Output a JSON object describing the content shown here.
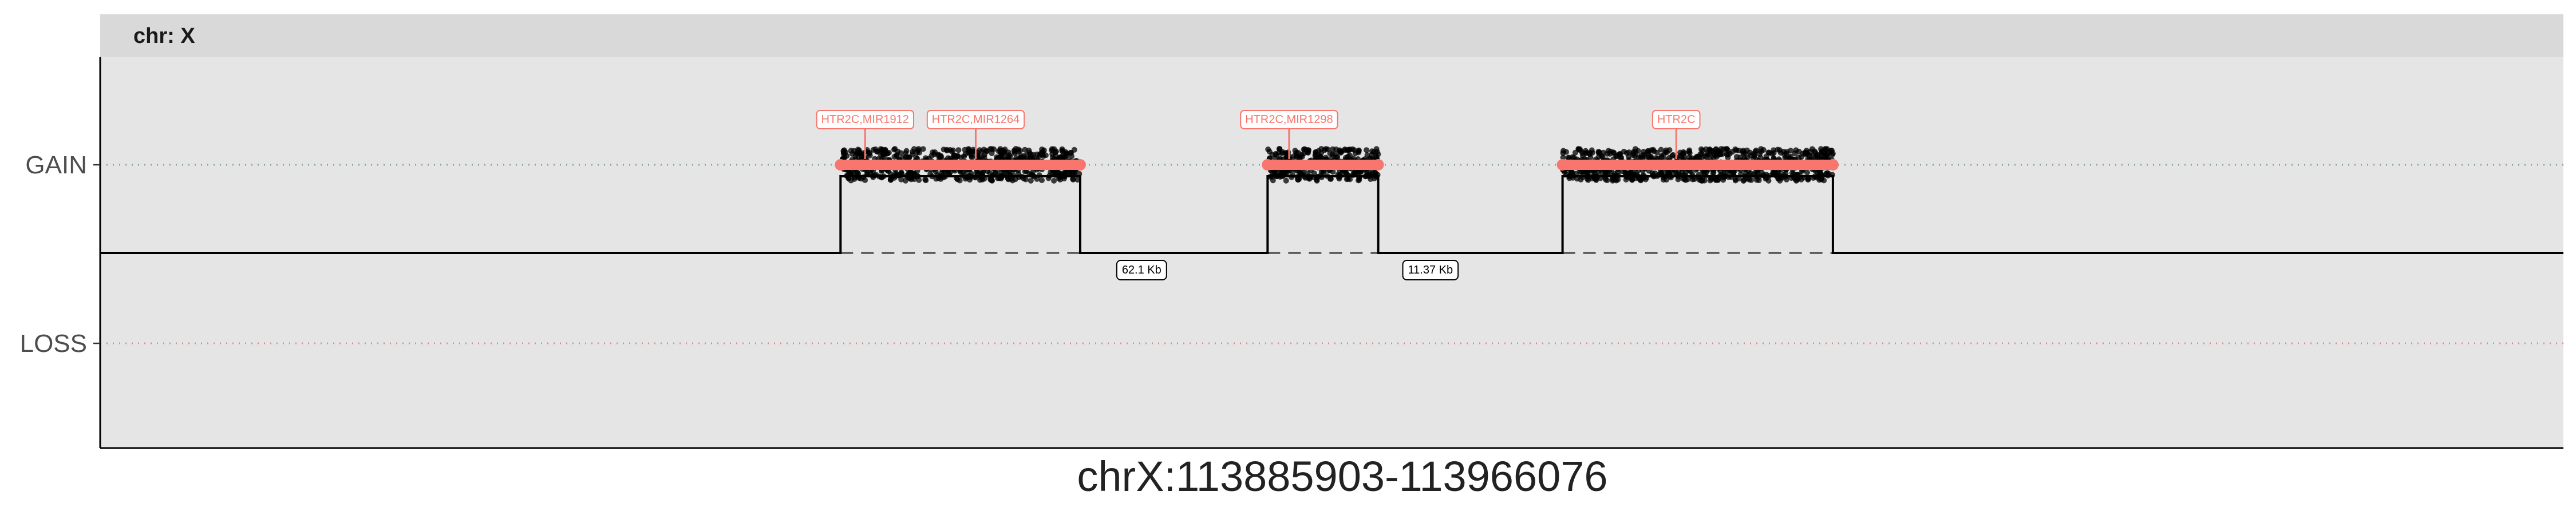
{
  "chart_data": {
    "type": "scatter",
    "facet_label": "chr: X",
    "xlabel": "chrX:113885903-113966076",
    "xlim": [
      113885903,
      113966076
    ],
    "y_levels": [
      "GAIN",
      "LOSS"
    ],
    "grid": false,
    "colors": {
      "panel_bg": "#e5e5e5",
      "strip_bg": "#d9d9d9",
      "segment": "#f8766d",
      "points": "#000000",
      "gain_line": "#7fa88f",
      "loss_line": "#e0898c"
    },
    "segments": [
      {
        "start": 113910000,
        "end": 113917800,
        "state": "GAIN"
      },
      {
        "start": 113923900,
        "end": 113927500,
        "state": "GAIN"
      },
      {
        "start": 113933500,
        "end": 113942300,
        "state": "GAIN"
      }
    ],
    "gene_labels": [
      {
        "text": "HTR2C,MIR1912",
        "x": 113910800
      },
      {
        "text": "HTR2C,MIR1264",
        "x": 113914400
      },
      {
        "text": "HTR2C,MIR1298",
        "x": 113924600
      },
      {
        "text": "HTR2C",
        "x": 113937200
      }
    ],
    "gap_labels": [
      {
        "text": "62.1 Kb",
        "x": 113919800
      },
      {
        "text": "11.37 Kb",
        "x": 113929200
      }
    ]
  }
}
